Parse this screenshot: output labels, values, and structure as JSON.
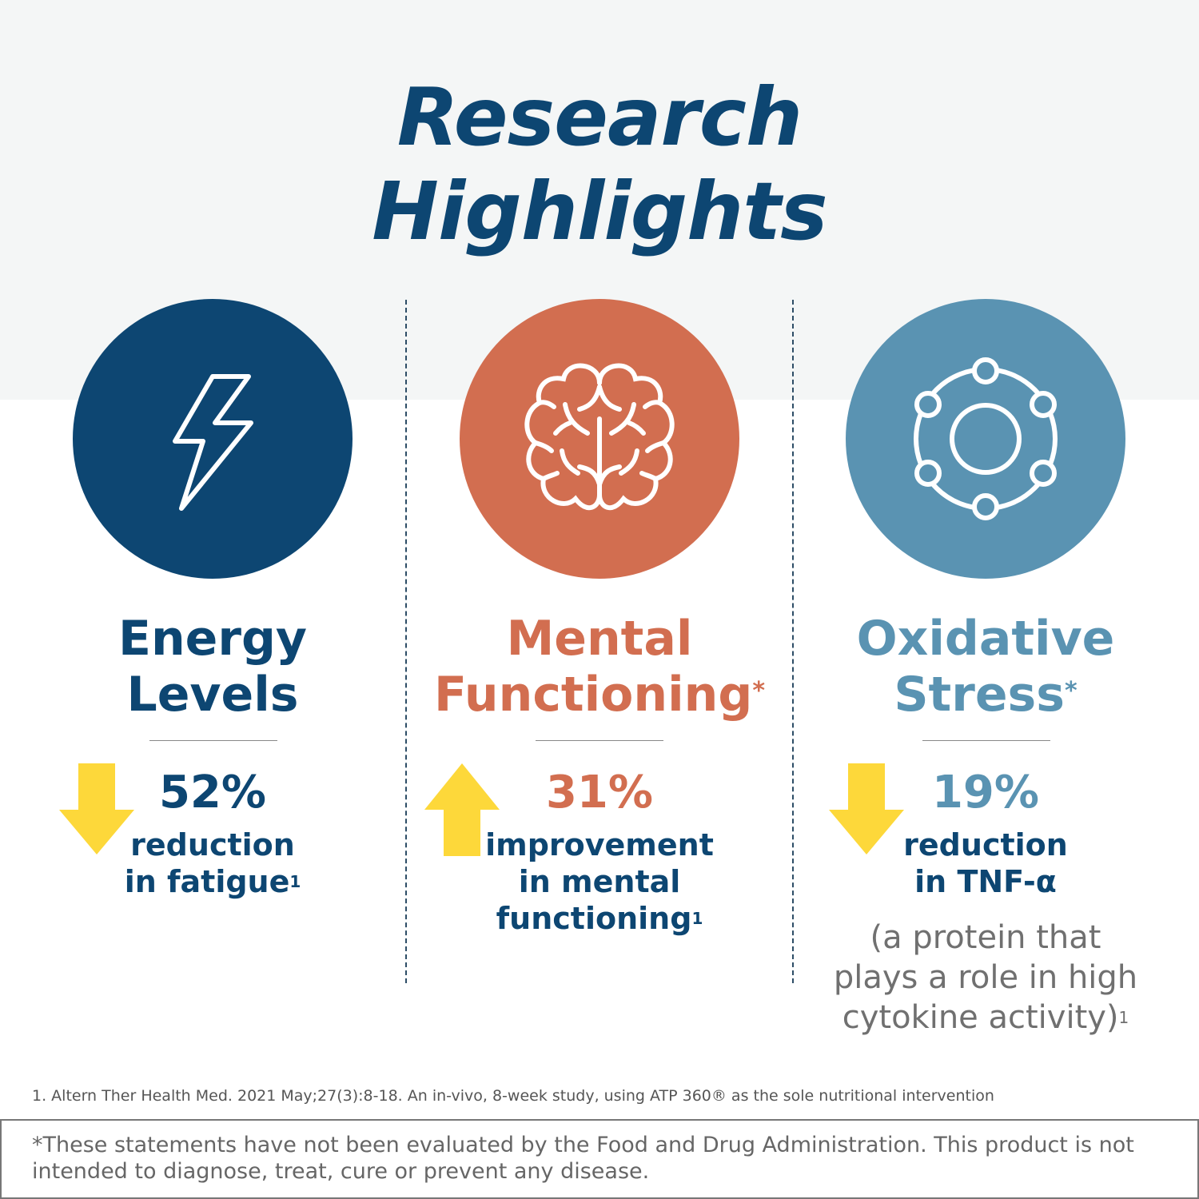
{
  "title": {
    "line1": "Research",
    "line2": "Highlights"
  },
  "colors": {
    "navy": "#0d4672",
    "orange": "#d26e50",
    "blue": "#5a93b2",
    "yellow": "#fdd83a",
    "band": "#f4f6f6"
  },
  "columns": [
    {
      "icon": "lightning-bolt-icon",
      "heading1": "Energy",
      "heading2": "Levels",
      "heading_mark": "",
      "arrow": "down",
      "percent": "52%",
      "desc1": "reduction",
      "desc2": "in fatigue",
      "desc3": "",
      "footnote": "1"
    },
    {
      "icon": "brain-icon",
      "heading1": "Mental",
      "heading2": "Functioning",
      "heading_mark": "*",
      "arrow": "up",
      "percent": "31%",
      "desc1": "improvement",
      "desc2": "in mental",
      "desc3": "functioning",
      "footnote": "1"
    },
    {
      "icon": "molecule-icon",
      "heading1": "Oxidative",
      "heading2": "Stress",
      "heading_mark": "*",
      "arrow": "down",
      "percent": "19%",
      "desc1": "reduction",
      "desc2": "in TNF-α",
      "desc3": "",
      "note1": "(a protein that",
      "note2": "plays a role in high",
      "note3": "cytokine activity)",
      "footnote": "1"
    }
  ],
  "reference": "1. Altern Ther Health Med. 2021 May;27(3):8-18. An in-vivo, 8-week study, using ATP 360® as the sole nutritional intervention",
  "disclaimer": "*These statements have not been evaluated by the Food and Drug Administration. This product is not intended to diagnose, treat, cure or prevent any disease."
}
